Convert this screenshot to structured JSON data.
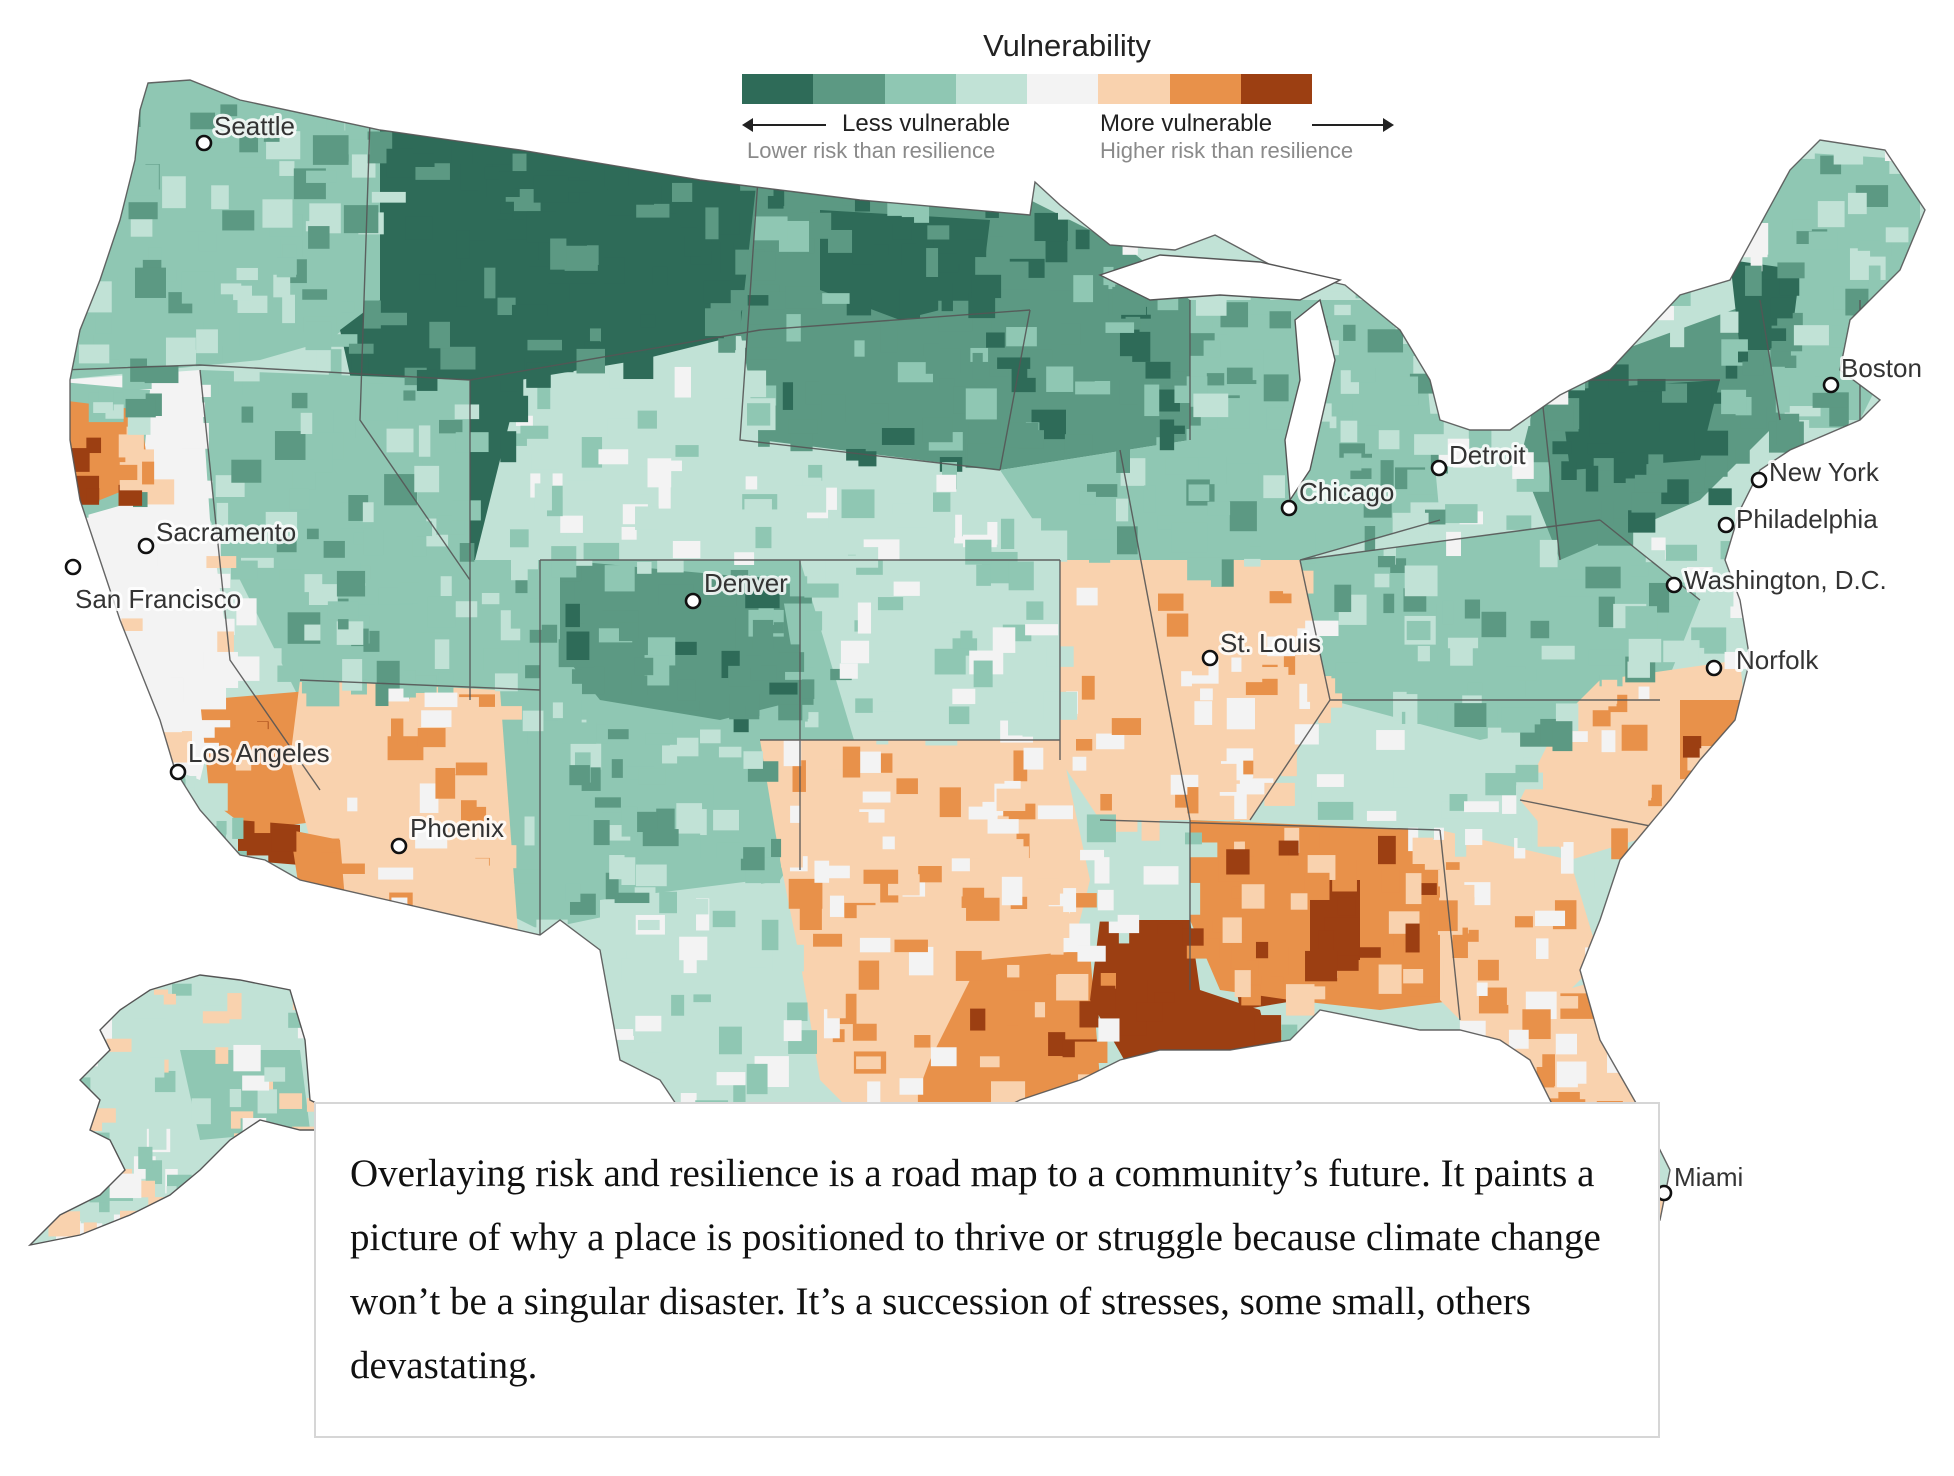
{
  "legend": {
    "title": "Vulnerability",
    "colors": [
      "#2e6b58",
      "#5c9983",
      "#8fc7b3",
      "#c1e2d6",
      "#f3f3f3",
      "#f9d2ae",
      "#e8914a",
      "#9c3f12"
    ],
    "less_label": "Less vulnerable",
    "less_sub": "Lower risk than resilience",
    "more_label": "More vulnerable",
    "more_sub": "Higher risk than resilience"
  },
  "cities": [
    {
      "name": "Seattle"
    },
    {
      "name": "Sacramento"
    },
    {
      "name": "San Francisco"
    },
    {
      "name": "Los Angeles"
    },
    {
      "name": "Phoenix"
    },
    {
      "name": "Denver"
    },
    {
      "name": "St. Louis"
    },
    {
      "name": "Chicago"
    },
    {
      "name": "Detroit"
    },
    {
      "name": "Boston"
    },
    {
      "name": "New York"
    },
    {
      "name": "Philadelphia"
    },
    {
      "name": "Washington, D.C."
    },
    {
      "name": "Norfolk"
    },
    {
      "name": "Miami"
    }
  ],
  "regions": {
    "pacific_northwest": 2,
    "northern_rockies": 0,
    "northern_plains": 1,
    "great_basin": 2,
    "california_coast": 4,
    "northern_california": 6,
    "inland_empire": 6,
    "imperial_valley": 7,
    "arizona": 5,
    "colorado_plateau": 2,
    "central_plains": 3,
    "upper_midwest": 2,
    "ozarks": 5,
    "texas_west": 3,
    "texas_east": 5,
    "gulf_coast": 6,
    "louisiana": 7,
    "deep_south": 6,
    "appalachia": 2,
    "carolinas": 5,
    "northeast": 1,
    "new_england": 2,
    "florida": 5,
    "alaska": 3
  },
  "body_text": "Overlaying risk and resilience is a road map to a community’s future. It paints a picture of why a place is positioned to thrive or struggle because climate change won’t be a singular disaster. It’s a succession of stresses, some small, others devastating."
}
